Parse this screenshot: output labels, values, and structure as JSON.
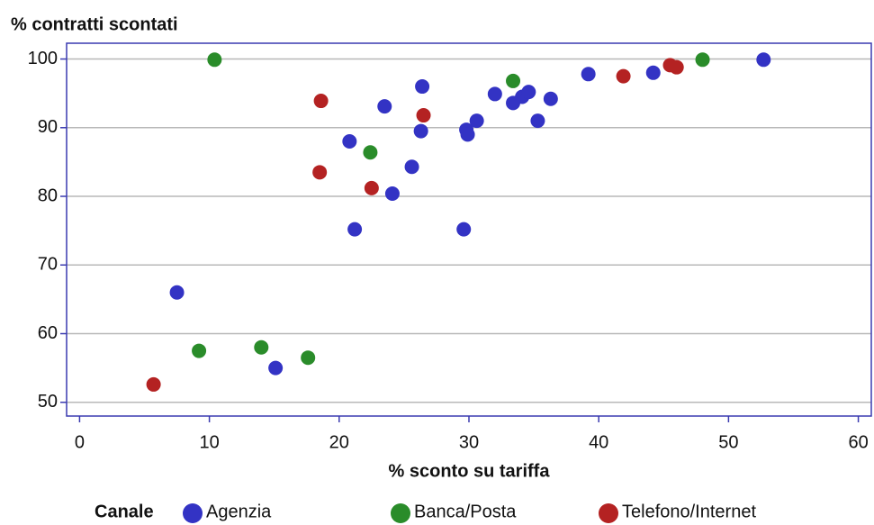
{
  "chart_data": {
    "type": "scatter",
    "title": "% contratti scontati",
    "x_label": "% sconto su tariffa",
    "legend_title": "Canale",
    "xlim": [
      -1,
      61
    ],
    "xticks": [
      0,
      10,
      20,
      30,
      40,
      50,
      60
    ],
    "ylim": [
      48,
      102.3
    ],
    "yticks": [
      50,
      60,
      70,
      80,
      90,
      100
    ],
    "grid": true,
    "legend": "bottom",
    "series": [
      {
        "name": "Agenzia",
        "color": "#3333c4",
        "x": [
          7.5,
          15.1,
          20.8,
          21.2,
          23.5,
          24.1,
          25.6,
          26.4,
          26.3,
          29.6,
          29.8,
          29.9,
          30.6,
          32,
          33.4,
          34.1,
          34.6,
          35.3,
          36.3,
          39.2,
          44.2,
          52.7
        ],
        "values": [
          66,
          55,
          88,
          75.2,
          93.1,
          80.4,
          84.3,
          96,
          89.5,
          75.2,
          89.7,
          89,
          91,
          94.9,
          93.6,
          94.5,
          95.2,
          91,
          94.2,
          97.8,
          98,
          99.9
        ]
      },
      {
        "name": "Banca/Posta",
        "color": "#2a8c2a",
        "x": [
          10.4,
          9.2,
          14,
          17.6,
          22.4,
          33.4,
          48
        ],
        "values": [
          99.9,
          57.5,
          58,
          56.5,
          86.4,
          96.8,
          99.9
        ]
      },
      {
        "name": "Telefono/Internet",
        "color": "#b42222",
        "x": [
          5.7,
          18.6,
          18.5,
          22.5,
          26.5,
          41.9,
          45.5,
          46
        ],
        "values": [
          52.6,
          93.9,
          83.5,
          81.2,
          91.8,
          97.5,
          99.1,
          98.8
        ]
      }
    ]
  }
}
